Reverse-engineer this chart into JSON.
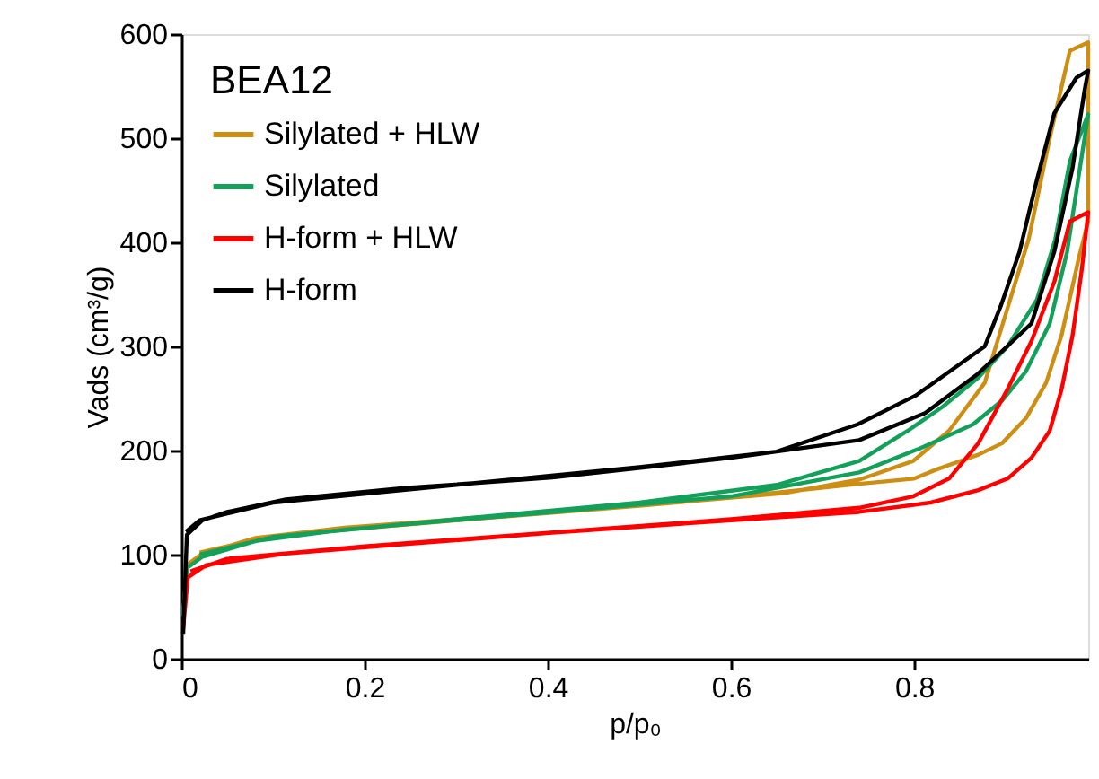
{
  "chart_data": {
    "type": "line",
    "xlabel": "p/p₀",
    "ylabel": "Vads (cm³/g)",
    "legend_title": "BEA12",
    "legend": "top left",
    "grid": false,
    "line_style": "solid",
    "marker": "none",
    "xlim": [
      0,
      0.99
    ],
    "xticks": [
      0,
      0.2,
      0.4,
      0.6,
      0.8
    ],
    "ylim": [
      0,
      600
    ],
    "yticks": [
      0,
      100,
      200,
      300,
      400,
      500,
      600
    ],
    "series": [
      {
        "name": "Silylated + HLW",
        "color": "#cc8f14",
        "x": [
          0.002,
          0.006,
          0.023,
          0.081,
          0.178,
          0.405,
          0.6,
          0.74,
          0.8,
          0.825,
          0.87,
          0.896,
          0.922,
          0.944,
          0.961,
          0.98,
          0.99,
          0.99,
          0.97,
          0.948,
          0.925,
          0.903,
          0.877,
          0.838,
          0.799,
          0.74,
          0.657,
          0.5,
          0.3,
          0.1,
          0.02
        ],
        "values": [
          41,
          90,
          101,
          116,
          126,
          141,
          155,
          168,
          173,
          182,
          196,
          207,
          231,
          265,
          311,
          386,
          420,
          592,
          584,
          500,
          403,
          340,
          265,
          219,
          190,
          172,
          159,
          147,
          133,
          118,
          102
        ]
      },
      {
        "name": "Silylated",
        "color": "#12a05a",
        "x": [
          0.002,
          0.006,
          0.023,
          0.081,
          0.178,
          0.405,
          0.6,
          0.74,
          0.806,
          0.864,
          0.896,
          0.922,
          0.948,
          0.967,
          0.98,
          0.99,
          0.97,
          0.954,
          0.934,
          0.902,
          0.87,
          0.831,
          0.793,
          0.74,
          0.65,
          0.5,
          0.3,
          0.1,
          0.02
        ],
        "values": [
          41,
          87,
          98,
          113,
          124,
          141,
          156,
          179,
          202,
          225,
          248,
          276,
          322,
          391,
          466,
          523,
          478,
          403,
          345,
          300,
          270,
          242,
          219,
          190,
          167,
          150,
          134,
          117,
          100
        ]
      },
      {
        "name": "H-form + HLW",
        "color": "#ff0000",
        "x": [
          0.002,
          0.007,
          0.027,
          0.114,
          0.244,
          0.405,
          0.6,
          0.74,
          0.818,
          0.87,
          0.902,
          0.928,
          0.948,
          0.961,
          0.973,
          0.983,
          0.99,
          0.97,
          0.953,
          0.928,
          0.902,
          0.87,
          0.838,
          0.799,
          0.74,
          0.6,
          0.4,
          0.2,
          0.05,
          0.01
        ],
        "values": [
          29,
          78,
          90,
          101,
          110,
          121,
          133,
          141,
          150,
          162,
          173,
          193,
          219,
          259,
          311,
          374,
          429,
          420,
          362,
          305,
          259,
          207,
          173,
          156,
          145,
          134,
          121,
          108,
          96,
          84
        ]
      },
      {
        "name": "H-form",
        "color": "#000000",
        "x": [
          0.002,
          0.006,
          0.023,
          0.05,
          0.114,
          0.244,
          0.405,
          0.6,
          0.74,
          0.812,
          0.87,
          0.928,
          0.953,
          0.973,
          0.986,
          0.99,
          0.977,
          0.953,
          0.934,
          0.915,
          0.895,
          0.877,
          0.802,
          0.738,
          0.65,
          0.5,
          0.3,
          0.1,
          0.02,
          0.005
        ],
        "values": [
          24,
          119,
          133,
          141,
          153,
          164,
          174,
          193,
          210,
          236,
          274,
          322,
          391,
          472,
          546,
          565,
          558,
          524,
          460,
          391,
          340,
          300,
          253,
          225,
          199,
          184,
          167,
          150,
          133,
          122
        ]
      }
    ]
  }
}
